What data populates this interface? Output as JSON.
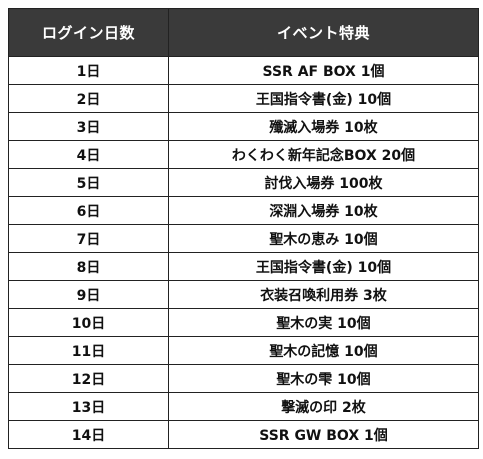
{
  "table": {
    "headers": {
      "day": "ログイン日数",
      "event": "イベント特典"
    },
    "rows": [
      {
        "day": "1日",
        "reward": "SSR AF BOX 1個"
      },
      {
        "day": "2日",
        "reward": "王国指令書(金) 10個"
      },
      {
        "day": "3日",
        "reward": "殲滅入場券 10枚"
      },
      {
        "day": "4日",
        "reward": "わくわく新年記念BOX 20個"
      },
      {
        "day": "5日",
        "reward": "討伐入場券 100枚"
      },
      {
        "day": "6日",
        "reward": "深淵入場券 10枚"
      },
      {
        "day": "7日",
        "reward": "聖木の恵み 10個"
      },
      {
        "day": "8日",
        "reward": "王国指令書(金) 10個"
      },
      {
        "day": "9日",
        "reward": "衣装召喚利用券 3枚"
      },
      {
        "day": "10日",
        "reward": "聖木の実 10個"
      },
      {
        "day": "11日",
        "reward": "聖木の記憶 10個"
      },
      {
        "day": "12日",
        "reward": "聖木の雫 10個"
      },
      {
        "day": "13日",
        "reward": "撃滅の印 2枚"
      },
      {
        "day": "14日",
        "reward": "SSR GW BOX 1個"
      }
    ]
  }
}
